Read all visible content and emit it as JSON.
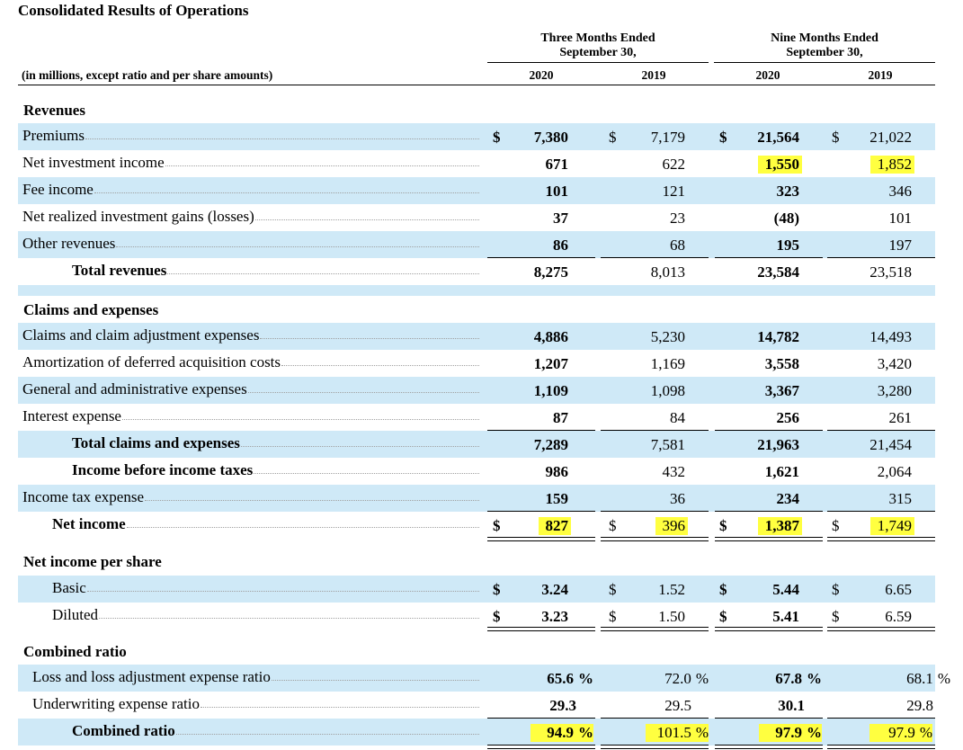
{
  "title": "Consolidated Results of Operations",
  "header": {
    "three_months": "Three Months Ended",
    "three_months_date": "September 30,",
    "nine_months": "Nine Months Ended",
    "nine_months_date": "September 30,",
    "units": "(in millions, except ratio and per share amounts)",
    "years": [
      "2020",
      "2019",
      "2020",
      "2019"
    ]
  },
  "revenues": {
    "heading": "Revenues",
    "rows": [
      {
        "label": "Premiums",
        "values": [
          "7,380",
          "7,179",
          "21,564",
          "21,022"
        ],
        "dollar": true
      },
      {
        "label": "Net investment income",
        "values": [
          "671",
          "622",
          "1,550",
          "1,852"
        ]
      },
      {
        "label": "Fee income",
        "values": [
          "101",
          "121",
          "323",
          "346"
        ]
      },
      {
        "label": "Net realized investment gains (losses)",
        "values": [
          "37",
          "23",
          "(48)",
          "101"
        ]
      },
      {
        "label": "Other revenues",
        "values": [
          "86",
          "68",
          "195",
          "197"
        ]
      }
    ],
    "total": {
      "label": "Total revenues",
      "values": [
        "8,275",
        "8,013",
        "23,584",
        "23,518"
      ]
    }
  },
  "claims": {
    "heading": "Claims and expenses",
    "rows": [
      {
        "label": "Claims and claim adjustment expenses",
        "values": [
          "4,886",
          "5,230",
          "14,782",
          "14,493"
        ]
      },
      {
        "label": "Amortization of deferred acquisition costs",
        "values": [
          "1,207",
          "1,169",
          "3,558",
          "3,420"
        ]
      },
      {
        "label": "General and administrative expenses",
        "values": [
          "1,109",
          "1,098",
          "3,367",
          "3,280"
        ]
      },
      {
        "label": "Interest expense",
        "values": [
          "87",
          "84",
          "256",
          "261"
        ]
      }
    ],
    "total": {
      "label": "Total claims and expenses",
      "values": [
        "7,289",
        "7,581",
        "21,963",
        "21,454"
      ]
    },
    "pretax": {
      "label": "Income before income taxes",
      "values": [
        "986",
        "432",
        "1,621",
        "2,064"
      ]
    },
    "tax": {
      "label": "Income tax expense",
      "values": [
        "159",
        "36",
        "234",
        "315"
      ]
    },
    "net": {
      "label": "Net income",
      "values": [
        "827",
        "396",
        "1,387",
        "1,749"
      ]
    }
  },
  "per_share": {
    "heading": "Net income per share",
    "rows": [
      {
        "label": "Basic",
        "values": [
          "3.24",
          "1.52",
          "5.44",
          "6.65"
        ]
      },
      {
        "label": "Diluted",
        "values": [
          "3.23",
          "1.50",
          "5.41",
          "6.59"
        ]
      }
    ]
  },
  "ratio": {
    "heading": "Combined ratio",
    "rows": [
      {
        "label": "Loss and loss adjustment expense ratio",
        "values": [
          "65.6",
          "72.0",
          "67.8",
          "68.1"
        ],
        "pct": true
      },
      {
        "label": "Underwriting expense ratio",
        "values": [
          "29.3",
          "29.5",
          "30.1",
          "29.8"
        ],
        "pct": false
      }
    ],
    "total": {
      "label": "Combined ratio",
      "values": [
        "94.9",
        "101.5",
        "97.9",
        "97.9"
      ]
    }
  },
  "symbols": {
    "dollar": "$",
    "percent": "%"
  },
  "colors": {
    "row_shade": "#cfe9f7",
    "highlight": "#ffff40"
  }
}
